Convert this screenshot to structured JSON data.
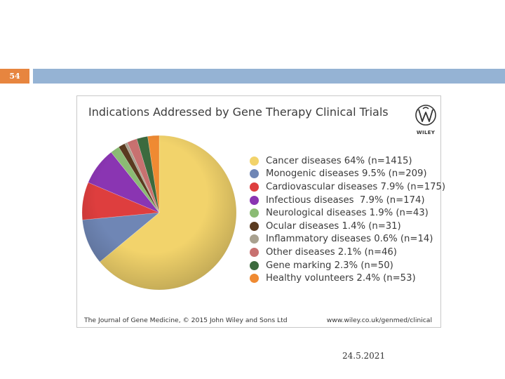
{
  "slide": {
    "number": "54",
    "date": "24.5.2021",
    "accent_color": "#e7853f",
    "bar_color": "#95b3d4"
  },
  "figure": {
    "publisher_logo": "wiley-logo",
    "publisher_name": "WILEY",
    "footer_left": "The Journal of Gene Medicine, © 2015 John Wiley and Sons Ltd",
    "footer_right": "www.wiley.co.uk/genmed/clinical"
  },
  "chart_data": {
    "type": "pie",
    "title": "Indications Addressed by Gene Therapy Clinical Trials",
    "legend_position": "right",
    "slices": [
      {
        "label": "Cancer diseases 64% (n=1415)",
        "value": 64,
        "color": "#f2d36b"
      },
      {
        "label": "Monogenic diseases 9.5% (n=209)",
        "value": 9.5,
        "color": "#6f86b5"
      },
      {
        "label": "Cardiovascular diseases 7.9% (n=175)",
        "value": 7.9,
        "color": "#de3e3e"
      },
      {
        "label": "Infectious diseases  7.9% (n=174)",
        "value": 7.9,
        "color": "#8a35b2"
      },
      {
        "label": "Neurological diseases 1.9% (n=43)",
        "value": 1.9,
        "color": "#8bbb74"
      },
      {
        "label": "Ocular diseases 1.4% (n=31)",
        "value": 1.4,
        "color": "#5a3a1f"
      },
      {
        "label": "Inflammatory diseases 0.6% (n=14)",
        "value": 0.6,
        "color": "#a9a18f"
      },
      {
        "label": "Other diseases 2.1% (n=46)",
        "value": 2.1,
        "color": "#c87170"
      },
      {
        "label": "Gene marking 2.3% (n=50)",
        "value": 2.3,
        "color": "#3c6a3e"
      },
      {
        "label": "Healthy volunteers 2.4% (n=53)",
        "value": 2.4,
        "color": "#ef8a32"
      }
    ]
  }
}
